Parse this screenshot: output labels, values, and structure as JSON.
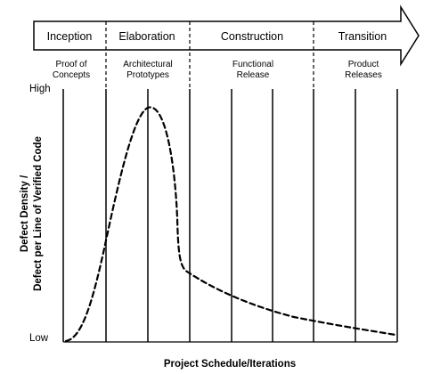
{
  "phases": [
    {
      "name": "Inception",
      "milestone": [
        "Proof of",
        "Concepts"
      ]
    },
    {
      "name": "Elaboration",
      "milestone": [
        "Architectural",
        "Prototypes"
      ]
    },
    {
      "name": "Construction",
      "milestone": [
        "Functional",
        "Release"
      ]
    },
    {
      "name": "Transition",
      "milestone": [
        "Product",
        "Releases"
      ]
    }
  ],
  "y_axis": {
    "title_line1": "Defect Density /",
    "title_line2": "Defect per Line of Verified Code",
    "high_label": "High",
    "low_label": "Low"
  },
  "x_axis": {
    "title": "Project Schedule/Iterations"
  },
  "colors": {
    "stroke": "#000000",
    "background": "#ffffff"
  }
}
